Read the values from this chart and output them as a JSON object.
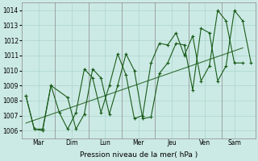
{
  "xlabel": "Pression niveau de la mer( hPa )",
  "ylim": [
    1005.5,
    1014.5
  ],
  "yticks": [
    1006,
    1007,
    1008,
    1009,
    1010,
    1011,
    1012,
    1013,
    1014
  ],
  "x_labels": [
    "Mar",
    "Dim",
    "Lun",
    "Mer",
    "Jeu",
    "Ven",
    "Sam"
  ],
  "bg_color": "#cceae5",
  "grid_color": "#aad5cc",
  "line_color": "#1a5c1a",
  "series1_x": [
    0,
    1,
    2,
    3,
    5,
    6,
    7,
    8,
    9,
    10,
    11,
    12,
    13,
    14,
    15,
    16,
    17,
    18,
    19,
    20,
    21,
    22,
    23,
    24,
    25,
    26,
    27
  ],
  "series1_y": [
    1008.3,
    1006.1,
    1006.0,
    1009.0,
    1008.2,
    1006.1,
    1007.1,
    1010.1,
    1009.5,
    1007.1,
    1009.0,
    1011.1,
    1010.0,
    1006.8,
    1006.9,
    1009.8,
    1010.5,
    1011.8,
    1011.7,
    1008.7,
    1012.8,
    1012.5,
    1009.3,
    1010.3,
    1014.0,
    1013.3,
    1010.5
  ],
  "series2_x": [
    0,
    1,
    2,
    3,
    4,
    5,
    6,
    7,
    8,
    9,
    10,
    11,
    12,
    13,
    14,
    15,
    16,
    17,
    18,
    19,
    20,
    21,
    22,
    23,
    24,
    25,
    26
  ],
  "series2_y": [
    1008.3,
    1006.1,
    1006.1,
    1009.0,
    1007.2,
    1006.1,
    1007.2,
    1010.1,
    1009.5,
    1007.2,
    1009.0,
    1011.1,
    1009.7,
    1006.8,
    1007.0,
    1010.5,
    1011.8,
    1011.7,
    1012.5,
    1011.0,
    1012.3,
    1009.3,
    1010.3,
    1014.0,
    1013.3,
    1010.5,
    1010.5
  ],
  "trend_x": [
    0,
    26
  ],
  "trend_y": [
    1006.5,
    1011.5
  ],
  "day_sep_x": [
    3.5,
    7.5,
    11.5,
    15.5,
    19.5,
    23.5
  ],
  "xlim": [
    -0.5,
    27.5
  ]
}
